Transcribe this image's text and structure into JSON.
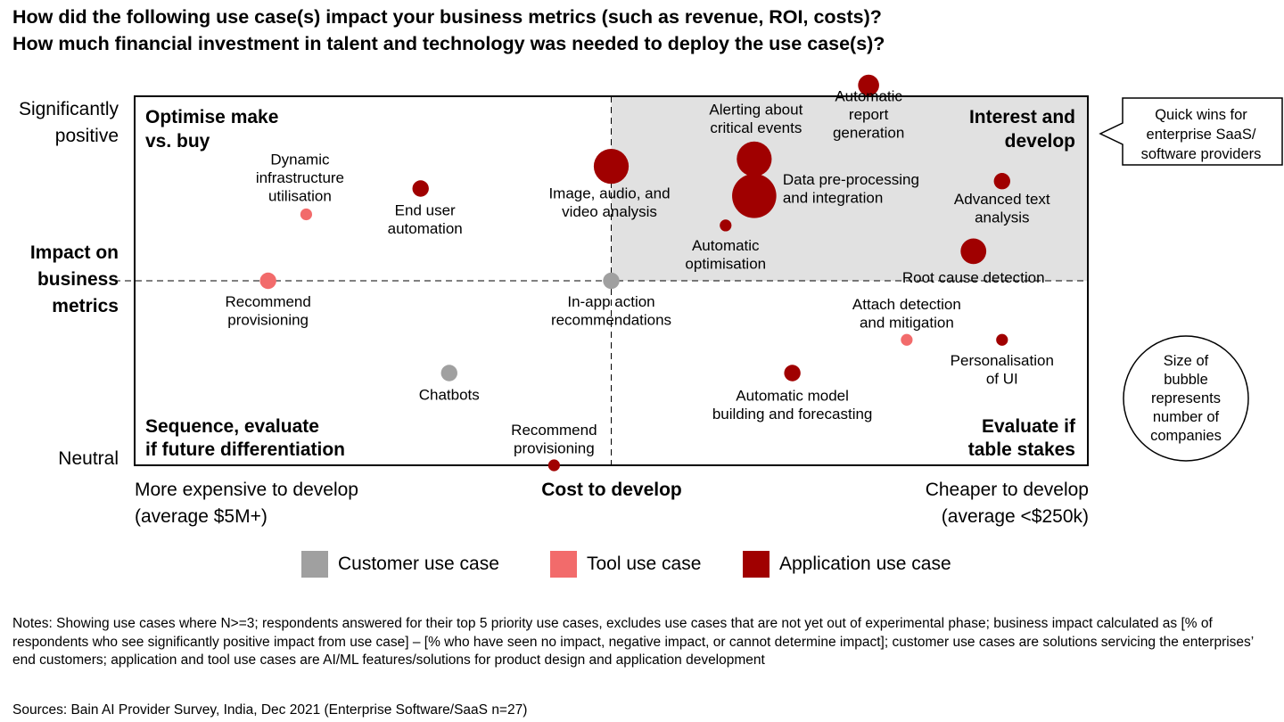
{
  "title": {
    "line1": "How did the following use case(s) impact your business metrics (such as revenue, ROI, costs)?",
    "line2": "How much financial investment in talent and technology was needed to deploy the use case(s)?"
  },
  "chart_data": {
    "type": "scatter",
    "y_axis": {
      "label_lines": [
        "Impact on",
        "business",
        "metrics"
      ],
      "top_label_lines": [
        "Significantly",
        "positive"
      ],
      "bottom_label": "Neutral"
    },
    "x_axis": {
      "label": "Cost to develop",
      "left_label_lines": [
        "More expensive to develop",
        "(average $5M+)"
      ],
      "right_label_lines": [
        "Cheaper to develop",
        "(average <$250k)"
      ]
    },
    "quadrants": {
      "top_left": [
        "Optimise make",
        "vs. buy"
      ],
      "top_right": [
        "Interest and",
        "develop"
      ],
      "bottom_left": [
        "Sequence, evaluate",
        "if future differentiation"
      ],
      "bottom_right": [
        "Evaluate if",
        "table stakes"
      ]
    },
    "callout_lines": [
      "Quick wins for",
      "enterprise SaaS/",
      "software providers"
    ],
    "size_note_lines": [
      "Size of",
      "bubble",
      "represents",
      "number of",
      "companies"
    ],
    "categories": [
      {
        "key": "customer",
        "name": "Customer use case",
        "color": "#A0A0A0"
      },
      {
        "key": "tool",
        "name": "Tool use case",
        "color": "#F26B6B"
      },
      {
        "key": "application",
        "name": "Application use case",
        "color": "#A00000"
      }
    ],
    "points": [
      {
        "label_lines": [
          "Automatic",
          "report",
          "generation"
        ],
        "category": "application",
        "x": 0.77,
        "y": 1.03,
        "size": 3
      },
      {
        "label_lines": [
          "Alerting about",
          "critical events"
        ],
        "category": "application",
        "x": 0.65,
        "y": 0.83,
        "size": 6
      },
      {
        "label_lines": [
          "Data pre-processing",
          "and integration"
        ],
        "category": "application",
        "x": 0.65,
        "y": 0.73,
        "size": 8
      },
      {
        "label_lines": [
          "Image, audio, and",
          "video analysis"
        ],
        "category": "application",
        "x": 0.5,
        "y": 0.81,
        "size": 6
      },
      {
        "label_lines": [
          "Advanced text",
          "analysis"
        ],
        "category": "application",
        "x": 0.91,
        "y": 0.77,
        "size": 2
      },
      {
        "label_lines": [
          "Automatic",
          "optimisation"
        ],
        "category": "application",
        "x": 0.62,
        "y": 0.65,
        "size": 1
      },
      {
        "label_lines": [
          "Root cause detection"
        ],
        "category": "application",
        "x": 0.88,
        "y": 0.58,
        "size": 4
      },
      {
        "label_lines": [
          "Dynamic",
          "infrastructure",
          "utilisation"
        ],
        "category": "tool",
        "x": 0.18,
        "y": 0.68,
        "size": 1
      },
      {
        "label_lines": [
          "End user",
          "automation"
        ],
        "category": "application",
        "x": 0.3,
        "y": 0.75,
        "size": 2
      },
      {
        "label_lines": [
          "Recommend",
          "provisioning"
        ],
        "category": "tool",
        "x": 0.14,
        "y": 0.5,
        "size": 2
      },
      {
        "label_lines": [
          "In-app action",
          "recommendations"
        ],
        "category": "customer",
        "x": 0.5,
        "y": 0.5,
        "size": 2
      },
      {
        "label_lines": [
          "Attach detection",
          "and mitigation"
        ],
        "category": "tool",
        "x": 0.81,
        "y": 0.34,
        "size": 1
      },
      {
        "label_lines": [
          "Personalisation",
          "of UI"
        ],
        "category": "application",
        "x": 0.91,
        "y": 0.34,
        "size": 1
      },
      {
        "label_lines": [
          "Automatic model",
          "building and forecasting"
        ],
        "category": "application",
        "x": 0.69,
        "y": 0.25,
        "size": 2
      },
      {
        "label_lines": [
          "Chatbots"
        ],
        "category": "customer",
        "x": 0.33,
        "y": 0.25,
        "size": 2
      },
      {
        "label_lines": [
          "Recommend",
          "provisioning"
        ],
        "category": "application",
        "x": 0.44,
        "y": 0.0,
        "size": 1
      }
    ]
  },
  "notes": "Notes: Showing use cases where N>=3; respondents answered for their top 5 priority use cases, excludes use cases that are not yet out of experimental phase; business impact calculated as [% of respondents who see significantly positive impact from use case] – [% who have seen no impact, negative impact, or cannot determine impact]; customer use cases are solutions servicing the enterprises’ end customers; application and tool use cases are AI/ML features/solutions for product design and application development",
  "sources": "Sources: Bain AI Provider Survey, India, Dec 2021 (Enterprise Software/SaaS n=27)"
}
